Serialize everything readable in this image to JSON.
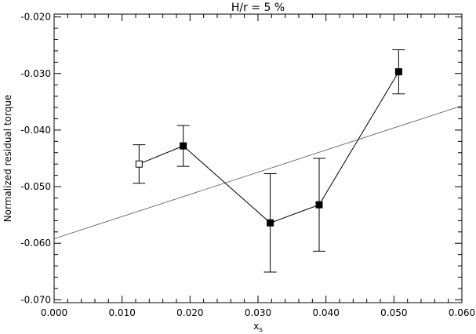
{
  "chart_data": {
    "type": "scatter",
    "title": "H/r = 5 %",
    "xlabel": "x",
    "xlabel_subscript": "s",
    "ylabel": "Normalized residual torque",
    "xlim": [
      0.0,
      0.06
    ],
    "ylim": [
      -0.0705,
      -0.0195
    ],
    "x_ticks": [
      0.0,
      0.01,
      0.02,
      0.03,
      0.04,
      0.05,
      0.06
    ],
    "x_tick_labels": [
      "0.000",
      "0.010",
      "0.020",
      "0.030",
      "0.040",
      "0.050",
      "0.060"
    ],
    "y_ticks": [
      -0.07,
      -0.06,
      -0.05,
      -0.04,
      -0.03,
      -0.02
    ],
    "y_tick_labels": [
      "-0.070",
      "-0.060",
      "-0.050",
      "-0.040",
      "-0.030",
      "-0.020"
    ],
    "grid": false,
    "series": [
      {
        "marker": "square",
        "connected": true,
        "points": [
          {
            "x": 0.0125,
            "y": -0.046,
            "err": 0.0034,
            "filled": false
          },
          {
            "x": 0.019,
            "y": -0.0428,
            "err": 0.0036,
            "filled": true
          },
          {
            "x": 0.0318,
            "y": -0.0564,
            "err": 0.0087,
            "filled": true
          },
          {
            "x": 0.039,
            "y": -0.0532,
            "err": 0.0082,
            "filled": true
          },
          {
            "x": 0.0507,
            "y": -0.0297,
            "err": 0.0039,
            "filled": true
          }
        ]
      }
    ],
    "fit_line": {
      "x": [
        0.0,
        0.06
      ],
      "y": [
        -0.0592,
        -0.0357
      ]
    },
    "colors": {
      "axes": "#000000",
      "series": "#000000",
      "fit_line": "#555555",
      "background": "#ffffff"
    }
  }
}
